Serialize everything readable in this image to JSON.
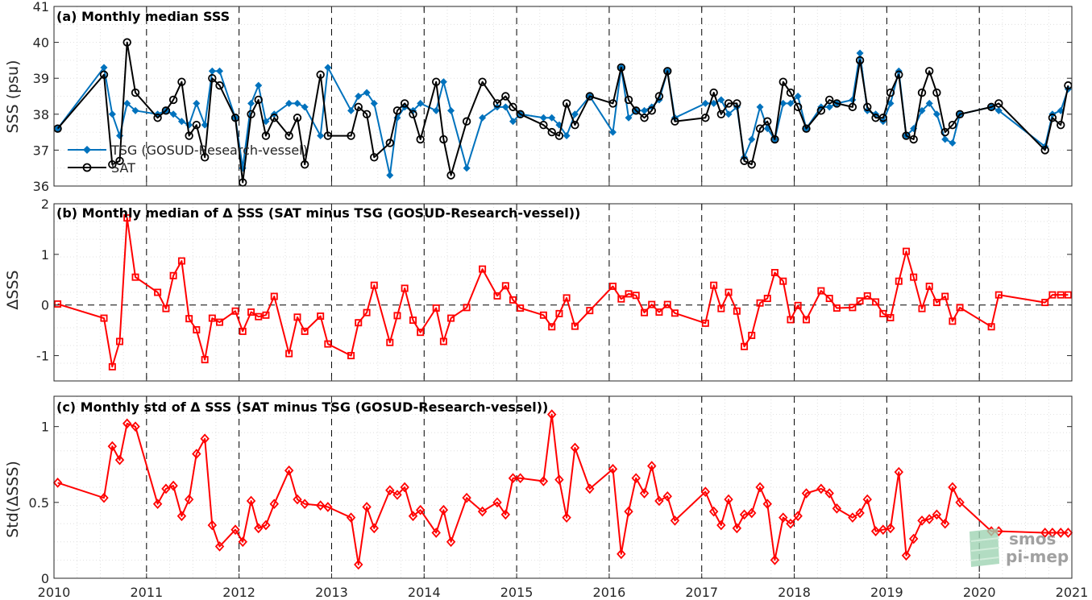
{
  "chart_data": [
    {
      "panel": "a",
      "type": "line",
      "title": "(a) Monthly median SSS",
      "ylabel": "SSS (psu)",
      "ylim": [
        36,
        41
      ],
      "yticks": [
        36,
        37,
        38,
        39,
        40,
        41
      ],
      "xlim": [
        2010,
        2021
      ],
      "xticks": [
        2010,
        2011,
        2012,
        2013,
        2014,
        2015,
        2016,
        2017,
        2018,
        2019,
        2020,
        2021
      ],
      "legend_position": "lower-left",
      "series": [
        {
          "name": "TSG (GOSUD-Research-vessel)",
          "color": "#0072BD",
          "marker": "diamond-filled",
          "x": [
            2010.04,
            2010.54,
            2010.63,
            2010.71,
            2010.79,
            2010.88,
            2011.12,
            2011.21,
            2011.29,
            2011.38,
            2011.46,
            2011.54,
            2011.63,
            2011.71,
            2011.79,
            2011.96,
            2012.04,
            2012.13,
            2012.21,
            2012.29,
            2012.38,
            2012.54,
            2012.63,
            2012.71,
            2012.88,
            2012.96,
            2013.21,
            2013.29,
            2013.38,
            2013.46,
            2013.63,
            2013.71,
            2013.79,
            2013.88,
            2013.96,
            2014.13,
            2014.21,
            2014.29,
            2014.46,
            2014.63,
            2014.79,
            2014.88,
            2014.96,
            2015.04,
            2015.29,
            2015.38,
            2015.46,
            2015.54,
            2015.63,
            2015.79,
            2016.04,
            2016.13,
            2016.21,
            2016.29,
            2016.38,
            2016.46,
            2016.54,
            2016.63,
            2016.71,
            2017.04,
            2017.13,
            2017.21,
            2017.29,
            2017.38,
            2017.46,
            2017.54,
            2017.63,
            2017.71,
            2017.79,
            2017.88,
            2017.96,
            2018.04,
            2018.13,
            2018.29,
            2018.38,
            2018.46,
            2018.63,
            2018.71,
            2018.79,
            2018.88,
            2018.96,
            2019.04,
            2019.13,
            2019.21,
            2019.29,
            2019.38,
            2019.46,
            2019.54,
            2019.63,
            2019.71,
            2019.79,
            2020.13,
            2020.21,
            2020.71,
            2020.79,
            2020.88,
            2020.96
          ],
          "y": [
            37.6,
            39.3,
            38.0,
            37.4,
            38.3,
            38.1,
            38.0,
            38.1,
            38.0,
            37.8,
            37.7,
            38.3,
            37.7,
            39.2,
            39.2,
            37.9,
            36.5,
            38.3,
            38.8,
            37.8,
            38.0,
            38.3,
            38.3,
            38.2,
            37.4,
            39.3,
            38.1,
            38.5,
            38.6,
            38.3,
            36.3,
            37.9,
            38.2,
            38.1,
            38.3,
            38.1,
            38.9,
            38.1,
            36.5,
            37.9,
            38.2,
            38.2,
            37.8,
            38.0,
            37.9,
            37.9,
            37.7,
            37.4,
            38.0,
            38.5,
            37.5,
            39.3,
            37.9,
            38.1,
            38.1,
            38.2,
            38.4,
            39.2,
            37.9,
            38.3,
            38.3,
            38.4,
            38.0,
            38.2,
            36.8,
            37.3,
            38.2,
            37.6,
            37.3,
            38.3,
            38.3,
            38.5,
            37.6,
            38.2,
            38.2,
            38.3,
            38.4,
            39.7,
            38.1,
            38.0,
            37.8,
            38.3,
            39.2,
            37.4,
            37.6,
            38.1,
            38.3,
            38.0,
            37.3,
            37.2,
            38.0,
            38.2,
            38.1,
            37.1,
            38.0,
            38.1,
            38.7
          ]
        },
        {
          "name": "SAT",
          "color": "#000000",
          "marker": "circle-open",
          "x": [
            2010.04,
            2010.54,
            2010.63,
            2010.71,
            2010.79,
            2010.88,
            2011.12,
            2011.21,
            2011.29,
            2011.38,
            2011.46,
            2011.54,
            2011.63,
            2011.71,
            2011.79,
            2011.96,
            2012.04,
            2012.13,
            2012.21,
            2012.29,
            2012.38,
            2012.54,
            2012.63,
            2012.71,
            2012.88,
            2012.96,
            2013.21,
            2013.29,
            2013.38,
            2013.46,
            2013.63,
            2013.71,
            2013.79,
            2013.88,
            2013.96,
            2014.13,
            2014.21,
            2014.29,
            2014.46,
            2014.63,
            2014.79,
            2014.88,
            2014.96,
            2015.04,
            2015.29,
            2015.38,
            2015.46,
            2015.54,
            2015.63,
            2015.79,
            2016.04,
            2016.13,
            2016.21,
            2016.29,
            2016.38,
            2016.46,
            2016.54,
            2016.63,
            2016.71,
            2017.04,
            2017.13,
            2017.21,
            2017.29,
            2017.38,
            2017.46,
            2017.54,
            2017.63,
            2017.71,
            2017.79,
            2017.88,
            2017.96,
            2018.04,
            2018.13,
            2018.29,
            2018.38,
            2018.46,
            2018.63,
            2018.71,
            2018.79,
            2018.88,
            2018.96,
            2019.04,
            2019.13,
            2019.21,
            2019.29,
            2019.38,
            2019.46,
            2019.54,
            2019.63,
            2019.71,
            2019.79,
            2020.13,
            2020.21,
            2020.71,
            2020.79,
            2020.88,
            2020.96
          ],
          "y": [
            37.6,
            39.1,
            36.6,
            36.7,
            40.0,
            38.6,
            37.9,
            38.1,
            38.4,
            38.9,
            37.4,
            37.7,
            36.8,
            39.0,
            38.8,
            37.9,
            36.1,
            38.0,
            38.4,
            37.4,
            37.9,
            37.4,
            37.9,
            36.6,
            39.1,
            37.4,
            37.4,
            38.2,
            38.0,
            36.8,
            37.2,
            38.1,
            38.3,
            38.0,
            37.3,
            38.9,
            37.3,
            36.3,
            37.8,
            38.9,
            38.3,
            38.5,
            38.2,
            38.0,
            37.7,
            37.5,
            37.4,
            38.3,
            37.7,
            38.5,
            38.3,
            39.3,
            38.4,
            38.1,
            37.9,
            38.1,
            38.5,
            39.2,
            37.8,
            37.9,
            38.6,
            38.0,
            38.3,
            38.3,
            36.7,
            36.6,
            37.6,
            37.8,
            37.3,
            38.9,
            38.6,
            38.2,
            37.6,
            38.1,
            38.4,
            38.3,
            38.2,
            39.5,
            38.2,
            37.9,
            37.9,
            38.6,
            39.1,
            37.4,
            37.3,
            38.6,
            39.2,
            38.6,
            37.5,
            37.7,
            38.0,
            38.2,
            38.3,
            37.0,
            37.9,
            37.7,
            38.8
          ]
        }
      ]
    },
    {
      "panel": "b",
      "type": "line",
      "title": "(b) Monthly median of Δ SSS (SAT minus TSG (GOSUD-Research-vessel))",
      "ylabel": "ΔSSS",
      "ylim": [
        -1.5,
        2
      ],
      "yticks": [
        -1,
        0,
        1,
        2
      ],
      "ytick_labels": [
        "-1",
        "0",
        "1",
        "2"
      ],
      "xlim": [
        2010,
        2021
      ],
      "zero_line": true,
      "series": [
        {
          "color": "#FF0000",
          "marker": "square-open",
          "x": [
            2010.04,
            2010.54,
            2010.63,
            2010.71,
            2010.79,
            2010.88,
            2011.12,
            2011.21,
            2011.29,
            2011.38,
            2011.46,
            2011.54,
            2011.63,
            2011.71,
            2011.79,
            2011.96,
            2012.04,
            2012.13,
            2012.21,
            2012.29,
            2012.38,
            2012.54,
            2012.63,
            2012.71,
            2012.88,
            2012.96,
            2013.21,
            2013.29,
            2013.38,
            2013.46,
            2013.63,
            2013.71,
            2013.79,
            2013.88,
            2013.96,
            2014.13,
            2014.21,
            2014.29,
            2014.46,
            2014.63,
            2014.79,
            2014.88,
            2014.96,
            2015.04,
            2015.29,
            2015.38,
            2015.46,
            2015.54,
            2015.63,
            2015.79,
            2016.04,
            2016.13,
            2016.21,
            2016.29,
            2016.38,
            2016.46,
            2016.54,
            2016.63,
            2016.71,
            2017.04,
            2017.13,
            2017.21,
            2017.29,
            2017.38,
            2017.46,
            2017.54,
            2017.63,
            2017.71,
            2017.79,
            2017.88,
            2017.96,
            2018.04,
            2018.13,
            2018.29,
            2018.38,
            2018.46,
            2018.63,
            2018.71,
            2018.79,
            2018.88,
            2018.96,
            2019.04,
            2019.13,
            2019.21,
            2019.29,
            2019.38,
            2019.46,
            2019.54,
            2019.63,
            2019.71,
            2019.79,
            2020.13,
            2020.21,
            2020.71,
            2020.79,
            2020.88,
            2020.96
          ],
          "y": [
            0.02,
            -0.26,
            -1.22,
            -0.72,
            1.72,
            0.55,
            0.25,
            -0.07,
            0.58,
            0.87,
            -0.27,
            -0.49,
            -1.08,
            -0.26,
            -0.34,
            -0.12,
            -0.52,
            -0.14,
            -0.23,
            -0.2,
            0.17,
            -0.96,
            -0.24,
            -0.52,
            -0.22,
            -0.77,
            -1.0,
            -0.35,
            -0.15,
            0.39,
            -0.74,
            -0.21,
            0.33,
            -0.3,
            -0.54,
            -0.06,
            -0.72,
            -0.26,
            -0.05,
            0.71,
            0.18,
            0.38,
            0.1,
            -0.06,
            -0.2,
            -0.43,
            -0.17,
            0.14,
            -0.42,
            -0.11,
            0.37,
            0.12,
            0.22,
            0.19,
            -0.15,
            0.01,
            -0.14,
            0.01,
            -0.16,
            -0.36,
            0.39,
            -0.07,
            0.25,
            -0.12,
            -0.82,
            -0.6,
            0.04,
            0.13,
            0.64,
            0.47,
            -0.29,
            -0.01,
            -0.29,
            0.28,
            0.13,
            -0.06,
            -0.05,
            0.08,
            0.18,
            0.06,
            -0.17,
            -0.25,
            0.47,
            1.06,
            0.55,
            -0.07,
            0.37,
            0.05,
            0.17,
            -0.32,
            -0.05,
            -0.43,
            0.2,
            0.05,
            0.2,
            0.2,
            0.2
          ]
        }
      ]
    },
    {
      "panel": "c",
      "type": "line",
      "title": "(c) Monthly std of Δ SSS (SAT minus TSG (GOSUD-Research-vessel))",
      "ylabel": "Std(ΔSSS)",
      "ylim": [
        0,
        1.2
      ],
      "yticks": [
        0,
        0.5,
        1
      ],
      "ytick_labels": [
        "0",
        "0.5",
        "1"
      ],
      "xlim": [
        2010,
        2021
      ],
      "series": [
        {
          "color": "#FF0000",
          "marker": "diamond-open",
          "x": [
            2010.04,
            2010.54,
            2010.63,
            2010.71,
            2010.79,
            2010.88,
            2011.12,
            2011.21,
            2011.29,
            2011.38,
            2011.46,
            2011.54,
            2011.63,
            2011.71,
            2011.79,
            2011.96,
            2012.04,
            2012.13,
            2012.21,
            2012.29,
            2012.38,
            2012.54,
            2012.63,
            2012.71,
            2012.88,
            2012.96,
            2013.21,
            2013.29,
            2013.38,
            2013.46,
            2013.63,
            2013.71,
            2013.79,
            2013.88,
            2013.96,
            2014.13,
            2014.21,
            2014.29,
            2014.46,
            2014.63,
            2014.79,
            2014.88,
            2014.96,
            2015.04,
            2015.29,
            2015.38,
            2015.46,
            2015.54,
            2015.63,
            2015.79,
            2016.04,
            2016.13,
            2016.21,
            2016.29,
            2016.38,
            2016.46,
            2016.54,
            2016.63,
            2016.71,
            2017.04,
            2017.13,
            2017.21,
            2017.29,
            2017.38,
            2017.46,
            2017.54,
            2017.63,
            2017.71,
            2017.79,
            2017.88,
            2017.96,
            2018.04,
            2018.13,
            2018.29,
            2018.38,
            2018.46,
            2018.63,
            2018.71,
            2018.79,
            2018.88,
            2018.96,
            2019.04,
            2019.13,
            2019.21,
            2019.29,
            2019.38,
            2019.46,
            2019.54,
            2019.63,
            2019.71,
            2019.79,
            2020.13,
            2020.21,
            2020.71,
            2020.79,
            2020.88,
            2020.96
          ],
          "y": [
            0.63,
            0.53,
            0.87,
            0.78,
            1.02,
            1.0,
            0.49,
            0.59,
            0.61,
            0.41,
            0.52,
            0.82,
            0.92,
            0.35,
            0.21,
            0.32,
            0.24,
            0.51,
            0.33,
            0.35,
            0.49,
            0.71,
            0.52,
            0.49,
            0.48,
            0.47,
            0.4,
            0.09,
            0.47,
            0.33,
            0.58,
            0.55,
            0.6,
            0.41,
            0.45,
            0.3,
            0.45,
            0.24,
            0.53,
            0.44,
            0.5,
            0.42,
            0.66,
            0.66,
            0.64,
            1.08,
            0.65,
            0.4,
            0.86,
            0.59,
            0.72,
            0.16,
            0.44,
            0.66,
            0.56,
            0.74,
            0.51,
            0.54,
            0.38,
            0.57,
            0.44,
            0.35,
            0.52,
            0.33,
            0.42,
            0.43,
            0.6,
            0.49,
            0.12,
            0.4,
            0.36,
            0.41,
            0.56,
            0.59,
            0.56,
            0.46,
            0.4,
            0.43,
            0.52,
            0.31,
            0.32,
            0.33,
            0.7,
            0.15,
            0.26,
            0.38,
            0.39,
            0.42,
            0.36,
            0.6,
            0.5,
            0.31,
            0.31,
            0.3,
            0.3,
            0.3,
            0.3
          ]
        }
      ]
    }
  ],
  "logo": {
    "line1": "smos",
    "line2": "pi-mep"
  }
}
